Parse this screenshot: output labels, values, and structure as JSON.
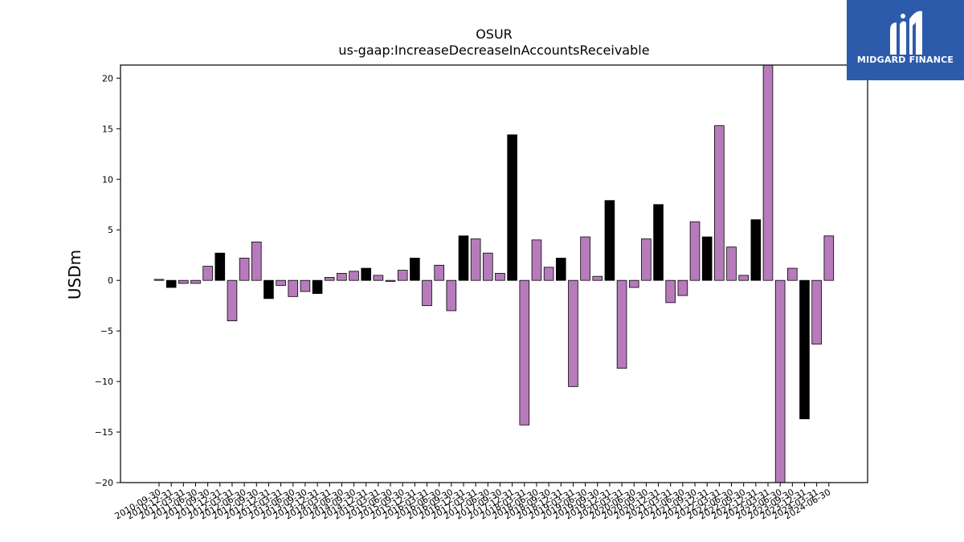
{
  "chart_data": {
    "type": "bar",
    "title": "OSUR",
    "subtitle": "us-gaap:IncreaseDecreaseInAccountsReceivable",
    "ylabel": "USDm",
    "xlabel": "",
    "ylim": [
      -20,
      21.3
    ],
    "yticks": [
      -20,
      -15,
      -10,
      -5,
      0,
      5,
      10,
      15,
      20
    ],
    "grid": false,
    "colors": {
      "q4": "#000000",
      "other": "#b77bbb",
      "edge": "#000000"
    },
    "categories": [
      "2010-09-30",
      "2010-12-31",
      "2011-03-31",
      "2011-06-30",
      "2011-09-30",
      "2011-12-31",
      "2012-03-31",
      "2012-06-30",
      "2012-09-30",
      "2012-12-31",
      "2013-03-31",
      "2013-06-30",
      "2013-09-30",
      "2013-12-31",
      "2014-03-31",
      "2014-06-30",
      "2014-09-30",
      "2014-12-31",
      "2015-03-31",
      "2015-06-30",
      "2015-09-30",
      "2015-12-31",
      "2016-03-31",
      "2016-06-30",
      "2016-09-30",
      "2016-12-31",
      "2017-03-31",
      "2017-06-30",
      "2017-09-30",
      "2017-12-31",
      "2018-03-31",
      "2018-06-30",
      "2018-09-30",
      "2018-12-31",
      "2019-03-31",
      "2019-06-30",
      "2019-09-30",
      "2019-12-31",
      "2020-03-31",
      "2020-06-30",
      "2020-09-30",
      "2020-12-31",
      "2021-03-31",
      "2021-06-30",
      "2021-09-30",
      "2021-12-31",
      "2022-03-31",
      "2022-06-30",
      "2022-09-30",
      "2022-12-31",
      "2023-03-31",
      "2023-06-30",
      "2023-09-30",
      "2023-12-31",
      "2024-03-31",
      "2024-06-30"
    ],
    "series": [
      {
        "values": [
          0.1,
          -0.7,
          -0.3,
          -0.3,
          1.4,
          2.7,
          -4.0,
          2.2,
          3.8,
          -1.8,
          -0.5,
          -1.6,
          -1.1,
          -1.3,
          0.3,
          0.7,
          0.9,
          1.2,
          0.5,
          -0.1,
          1.0,
          2.2,
          -2.5,
          1.5,
          -3.0,
          4.4,
          4.1,
          2.7,
          0.7,
          14.4,
          -14.3,
          4.0,
          1.3,
          2.2,
          -10.5,
          4.3,
          0.4,
          7.9,
          -8.7,
          -0.7,
          4.1,
          7.5,
          -2.2,
          -1.5,
          5.8,
          4.3,
          15.3,
          3.3,
          0.5,
          6.0,
          21.3,
          -20.0,
          1.2,
          -13.7,
          -6.3,
          4.4
        ]
      }
    ]
  },
  "logo": {
    "text": "MIDGARD FINANCE"
  }
}
